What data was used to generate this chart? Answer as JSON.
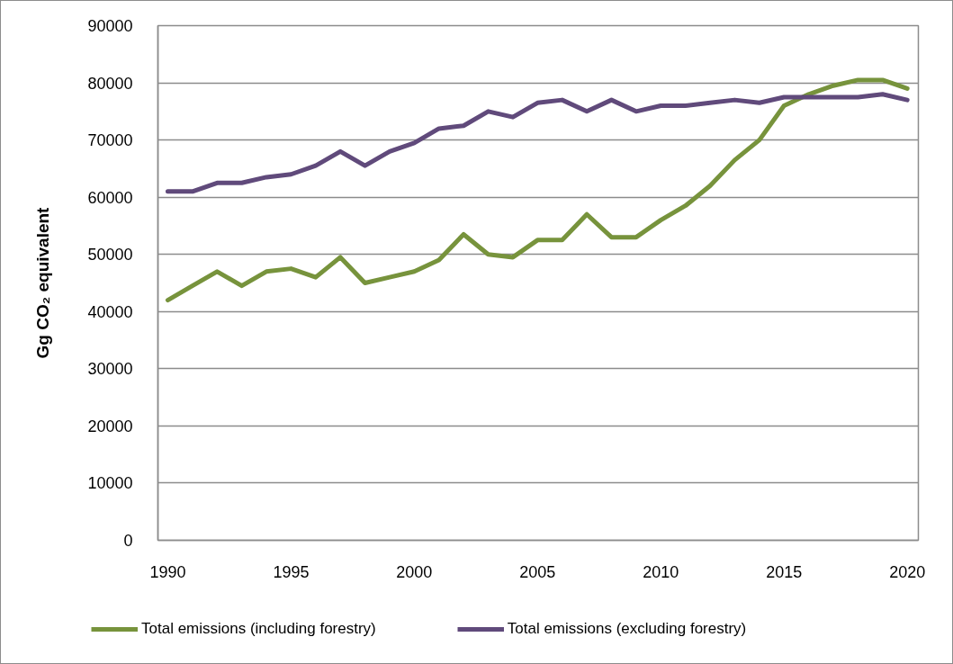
{
  "chart_data": {
    "type": "line",
    "ylabel": "Gg CO₂ equivalent",
    "x": [
      1990,
      1991,
      1992,
      1993,
      1994,
      1995,
      1996,
      1997,
      1998,
      1999,
      2000,
      2001,
      2002,
      2003,
      2004,
      2005,
      2006,
      2007,
      2008,
      2009,
      2010,
      2011,
      2012,
      2013,
      2014,
      2015,
      2016,
      2017,
      2018,
      2019,
      2020
    ],
    "series": [
      {
        "name": "Total emissions (including forestry)",
        "color": "#77933c",
        "values": [
          42000,
          44500,
          47000,
          44500,
          47000,
          47500,
          46000,
          49500,
          45000,
          46000,
          47000,
          49000,
          53500,
          50000,
          49500,
          52500,
          52500,
          57000,
          53000,
          53000,
          56000,
          58500,
          62000,
          66500,
          70000,
          76000,
          78000,
          79500,
          80500,
          80500,
          79000
        ]
      },
      {
        "name": "Total emissions (excluding forestry)",
        "color": "#604a7b",
        "values": [
          61000,
          61000,
          62500,
          62500,
          63500,
          64000,
          65500,
          68000,
          65500,
          68000,
          69500,
          72000,
          72500,
          75000,
          74000,
          76500,
          77000,
          75000,
          77000,
          75000,
          76000,
          76000,
          76500,
          77000,
          76500,
          77500,
          77500,
          77500,
          77500,
          78000,
          77000
        ]
      }
    ],
    "xlim": [
      1989.6,
      2020.45
    ],
    "xticks": [
      1990,
      1995,
      2000,
      2005,
      2010,
      2015,
      2020
    ],
    "ylim": [
      0,
      90000
    ],
    "yticks": [
      0,
      10000,
      20000,
      30000,
      40000,
      50000,
      60000,
      70000,
      80000,
      90000
    ],
    "grid": "y",
    "legend": "bottom"
  }
}
